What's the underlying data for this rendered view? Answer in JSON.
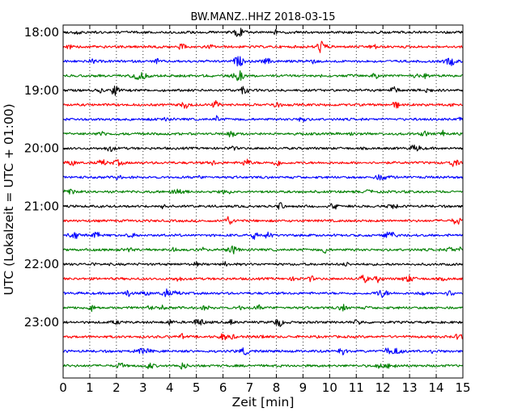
{
  "chart_data": {
    "type": "line",
    "title": "BW.MANZ..HHZ 2018-03-15",
    "xlabel": "Zeit  [min]",
    "ylabel": "UTC (Lokalzeit = UTC + 01:00)",
    "xlim": [
      0,
      15
    ],
    "x_ticks": [
      "0",
      "1",
      "2",
      "3",
      "4",
      "5",
      "6",
      "7",
      "8",
      "9",
      "10",
      "11",
      "12",
      "13",
      "14",
      "15"
    ],
    "y_ticks": [
      "18:00",
      "19:00",
      "20:00",
      "21:00",
      "22:00",
      "23:00"
    ],
    "grid": "vertical dotted",
    "trace_colors": [
      "#000000",
      "#ff0000",
      "#0000ff",
      "#008000"
    ],
    "traces": [
      {
        "start": "18:00",
        "color": "#000000"
      },
      {
        "start": "18:15",
        "color": "#ff0000"
      },
      {
        "start": "18:30",
        "color": "#0000ff"
      },
      {
        "start": "18:45",
        "color": "#008000"
      },
      {
        "start": "19:00",
        "color": "#000000"
      },
      {
        "start": "19:15",
        "color": "#ff0000"
      },
      {
        "start": "19:30",
        "color": "#0000ff"
      },
      {
        "start": "19:45",
        "color": "#008000"
      },
      {
        "start": "20:00",
        "color": "#000000"
      },
      {
        "start": "20:15",
        "color": "#ff0000"
      },
      {
        "start": "20:30",
        "color": "#0000ff"
      },
      {
        "start": "20:45",
        "color": "#008000"
      },
      {
        "start": "21:00",
        "color": "#000000"
      },
      {
        "start": "21:15",
        "color": "#ff0000"
      },
      {
        "start": "21:30",
        "color": "#0000ff"
      },
      {
        "start": "21:45",
        "color": "#008000"
      },
      {
        "start": "22:00",
        "color": "#000000"
      },
      {
        "start": "22:15",
        "color": "#ff0000"
      },
      {
        "start": "22:30",
        "color": "#0000ff"
      },
      {
        "start": "22:45",
        "color": "#008000"
      },
      {
        "start": "23:00",
        "color": "#000000"
      },
      {
        "start": "23:15",
        "color": "#ff0000"
      },
      {
        "start": "23:30",
        "color": "#0000ff"
      },
      {
        "start": "23:45",
        "color": "#008000"
      }
    ]
  }
}
